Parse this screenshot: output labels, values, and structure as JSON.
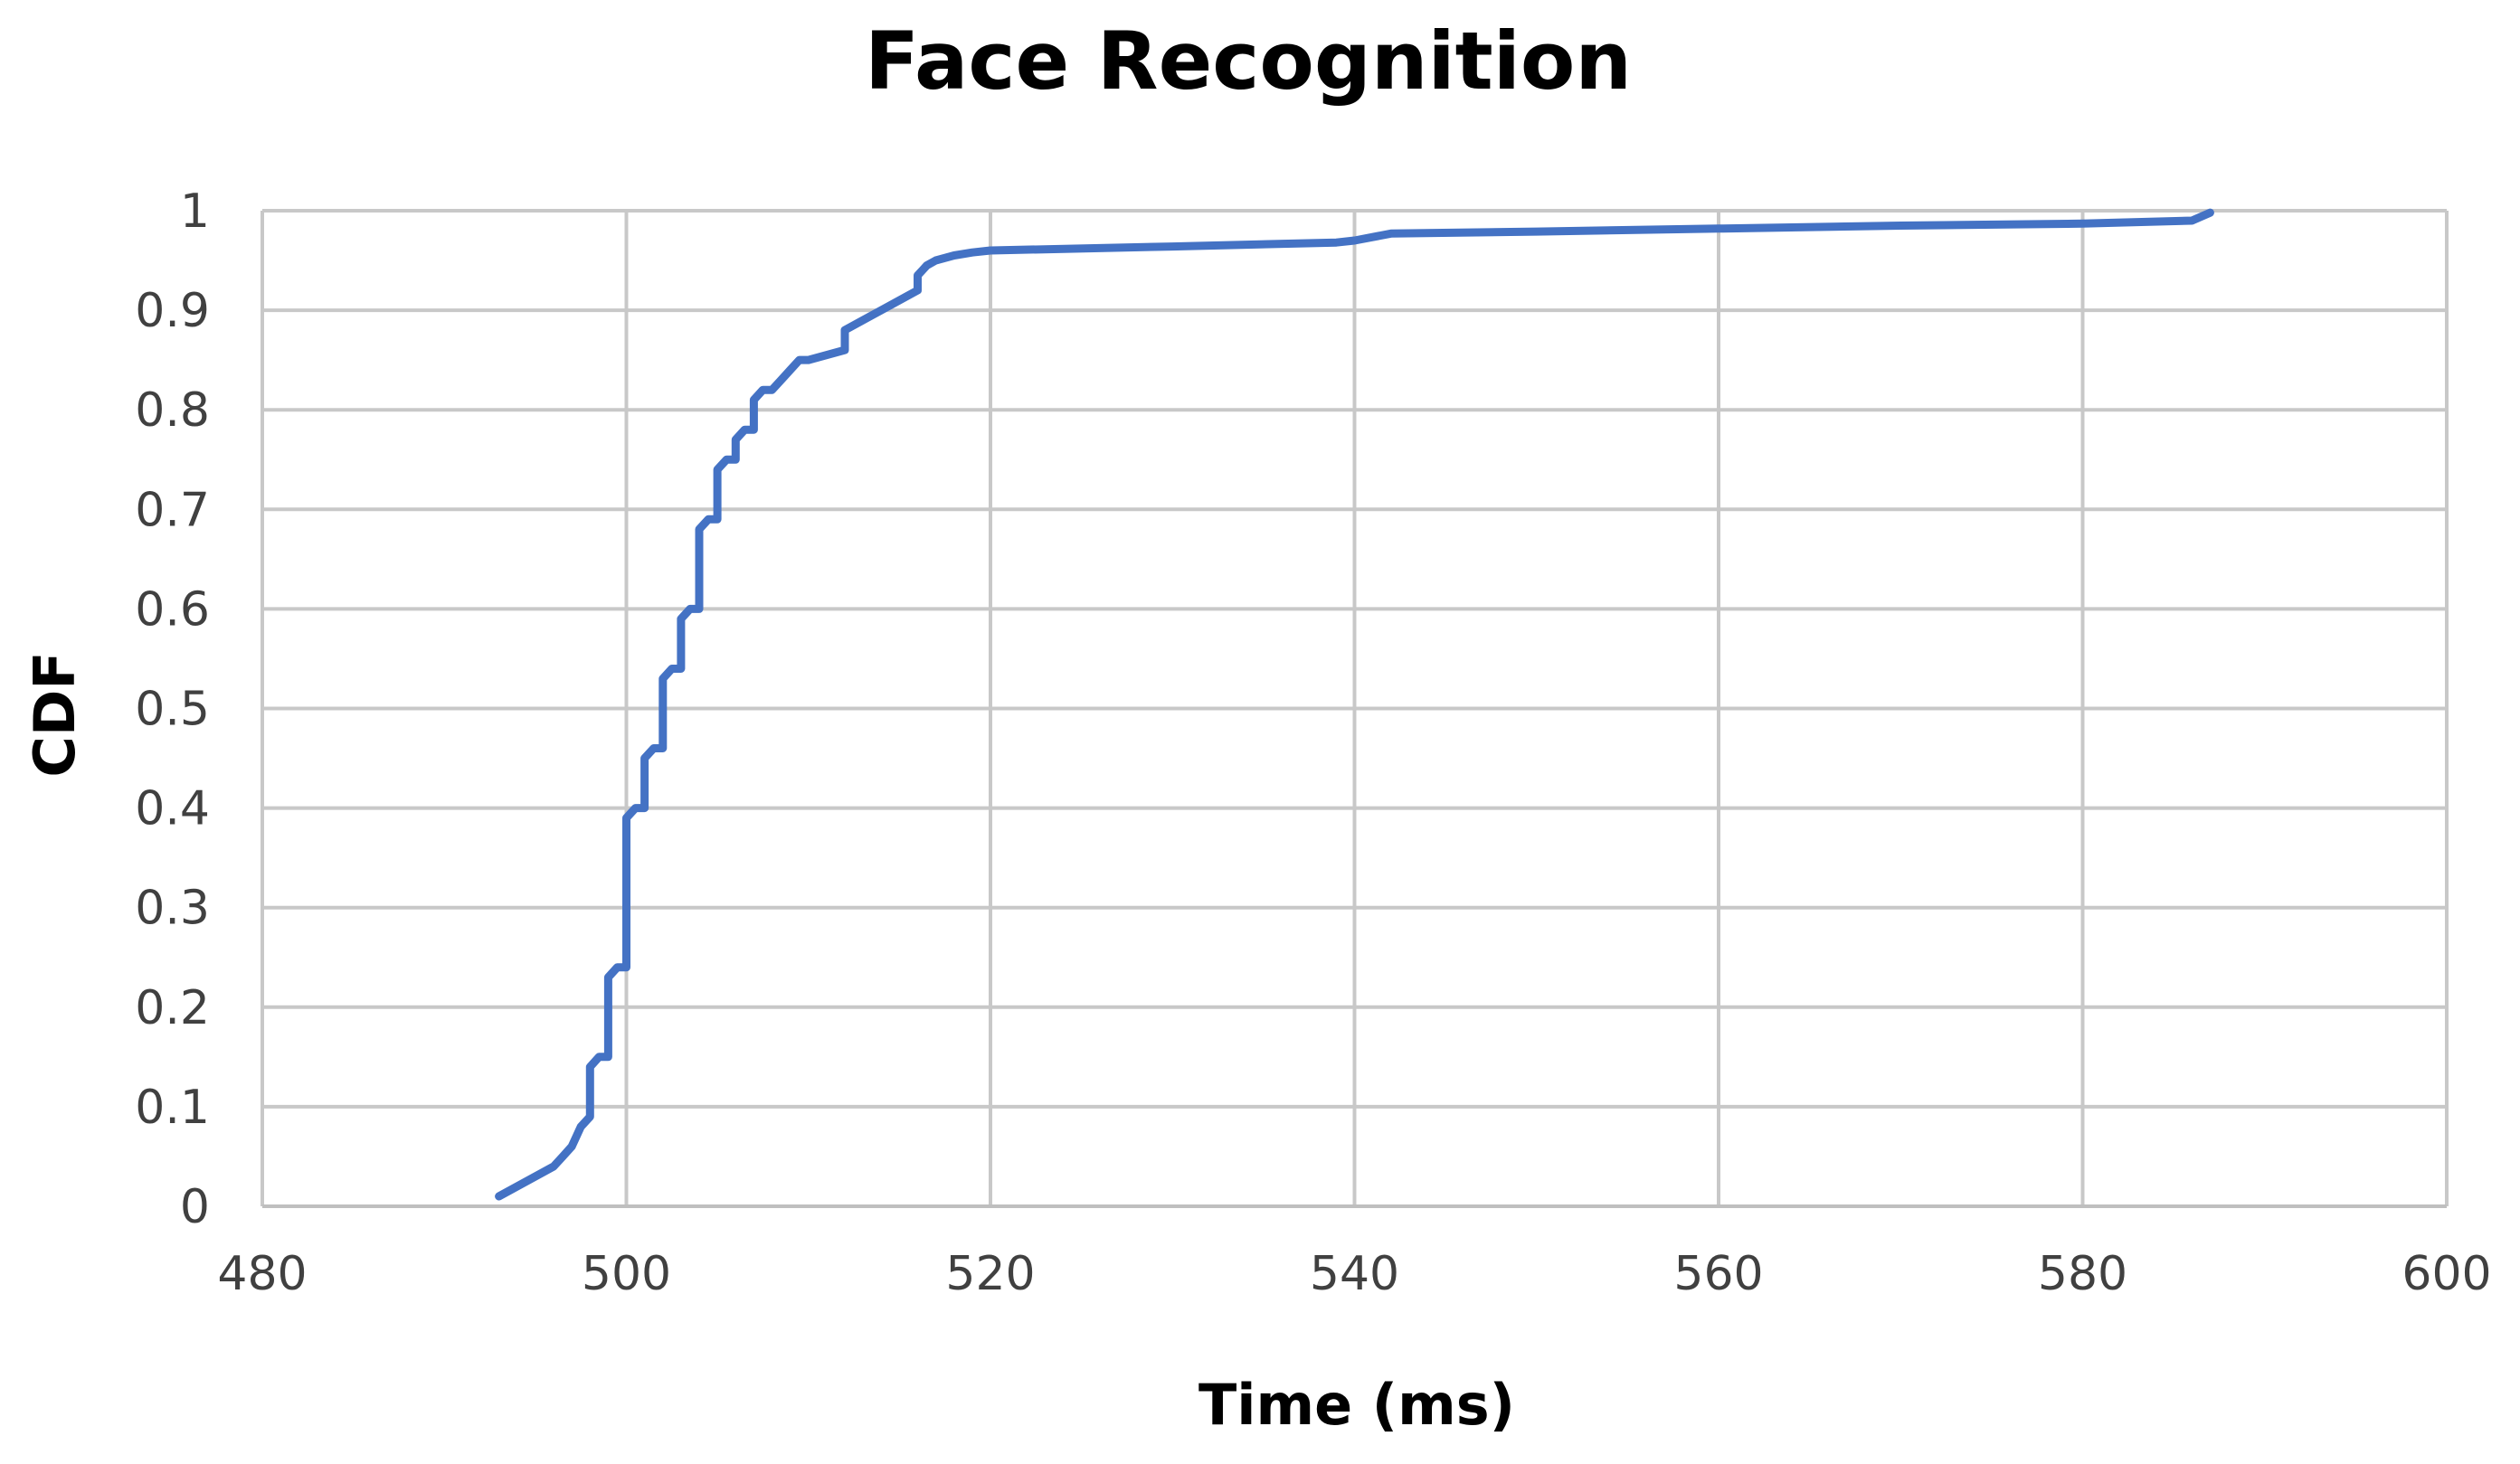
{
  "chart_data": {
    "type": "line",
    "title": "Face Recognition",
    "xlabel": "Time (ms)",
    "ylabel": "CDF",
    "xlim": [
      480,
      600
    ],
    "ylim": [
      0,
      1
    ],
    "x_ticks": [
      480,
      500,
      520,
      540,
      560,
      580,
      600
    ],
    "y_ticks": [
      0,
      0.1,
      0.2,
      0.3,
      0.4,
      0.5,
      0.6,
      0.7,
      0.8,
      0.9,
      1
    ],
    "x_tick_labels": [
      "480",
      "500",
      "520",
      "540",
      "560",
      "580",
      "600"
    ],
    "y_tick_labels": [
      "0",
      "0.1",
      "0.2",
      "0.3",
      "0.4",
      "0.5",
      "0.6",
      "0.7",
      "0.8",
      "0.9",
      "1"
    ],
    "grid": true,
    "legend": "none",
    "series": [
      {
        "color": "#4472c4",
        "x": [
          493,
          496,
          496.5,
          497,
          497.5,
          498,
          498,
          498.5,
          499,
          499,
          499.5,
          500,
          500,
          500.5,
          501,
          501,
          501.5,
          502,
          502,
          502.5,
          503,
          503,
          503.5,
          504,
          504,
          504.5,
          505,
          505,
          505.5,
          506,
          506,
          506.5,
          507,
          507,
          507.5,
          508,
          508.5,
          509,
          509.5,
          510,
          511,
          512,
          512,
          513,
          514,
          515,
          516,
          516,
          516.5,
          517,
          518,
          519,
          520,
          530,
          539,
          540,
          542,
          550,
          560,
          570,
          580,
          586,
          587
        ],
        "y": [
          0.01,
          0.04,
          0.05,
          0.06,
          0.08,
          0.09,
          0.14,
          0.15,
          0.15,
          0.23,
          0.24,
          0.24,
          0.39,
          0.4,
          0.4,
          0.45,
          0.46,
          0.46,
          0.53,
          0.54,
          0.54,
          0.59,
          0.6,
          0.6,
          0.68,
          0.69,
          0.69,
          0.74,
          0.75,
          0.75,
          0.77,
          0.78,
          0.78,
          0.81,
          0.82,
          0.82,
          0.83,
          0.84,
          0.85,
          0.85,
          0.855,
          0.86,
          0.88,
          0.89,
          0.9,
          0.91,
          0.92,
          0.935,
          0.945,
          0.95,
          0.955,
          0.958,
          0.96,
          0.964,
          0.968,
          0.97,
          0.977,
          0.979,
          0.982,
          0.985,
          0.987,
          0.99,
          0.998
        ]
      }
    ]
  }
}
